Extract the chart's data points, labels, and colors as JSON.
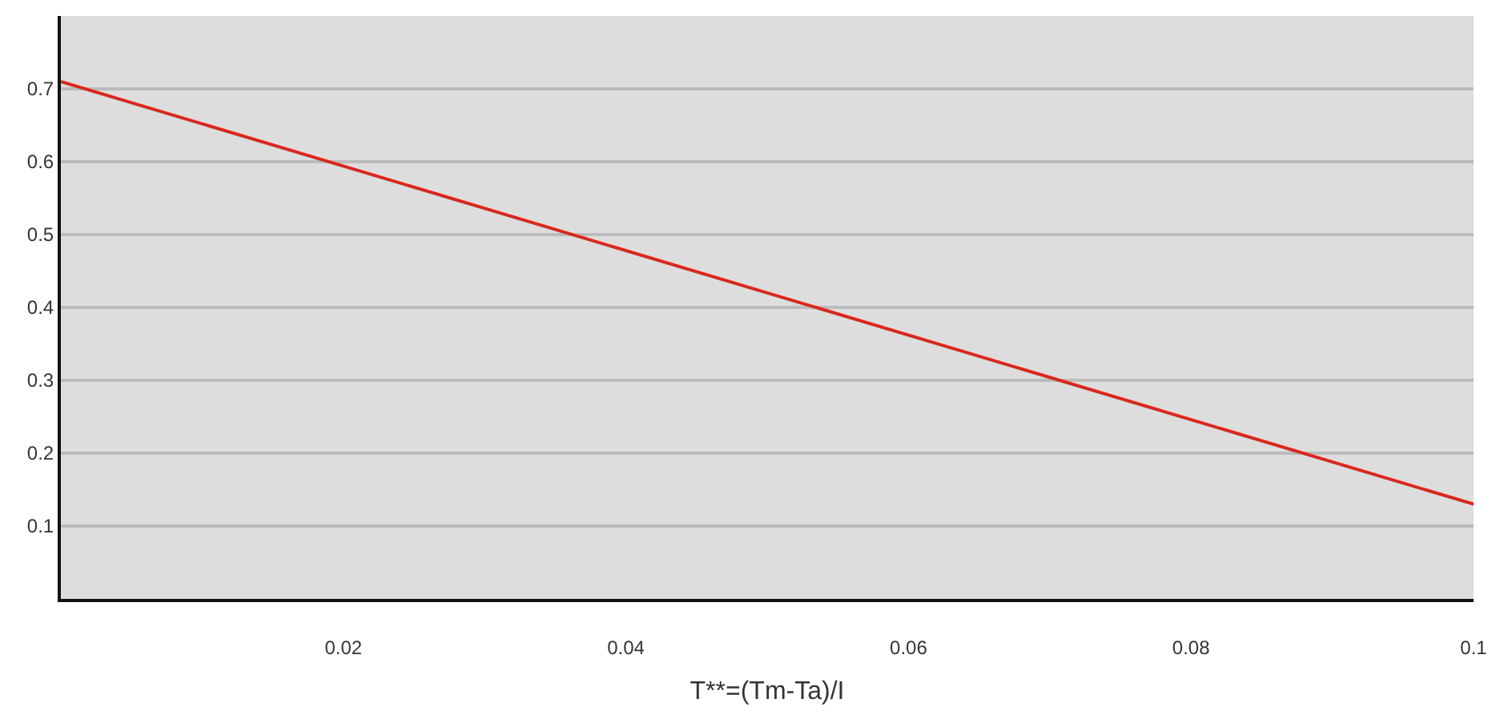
{
  "chart_data": {
    "type": "line",
    "xlabel": "T**=(Tm-Ta)/I",
    "x": [
      0,
      0.1
    ],
    "series": [
      {
        "color": "#d9281e",
        "values": [
          0.71,
          0.13
        ]
      }
    ],
    "xlim": [
      0,
      0.1
    ],
    "xticks": [
      0.02,
      0.04,
      0.06,
      0.08,
      0.1
    ],
    "ylim": [
      0,
      0.8
    ],
    "yticks": [
      0.1,
      0.2,
      0.3,
      0.4,
      0.5,
      0.6,
      0.7
    ],
    "grid": "y",
    "legend": false,
    "marker": "none",
    "line_style": "solid"
  }
}
